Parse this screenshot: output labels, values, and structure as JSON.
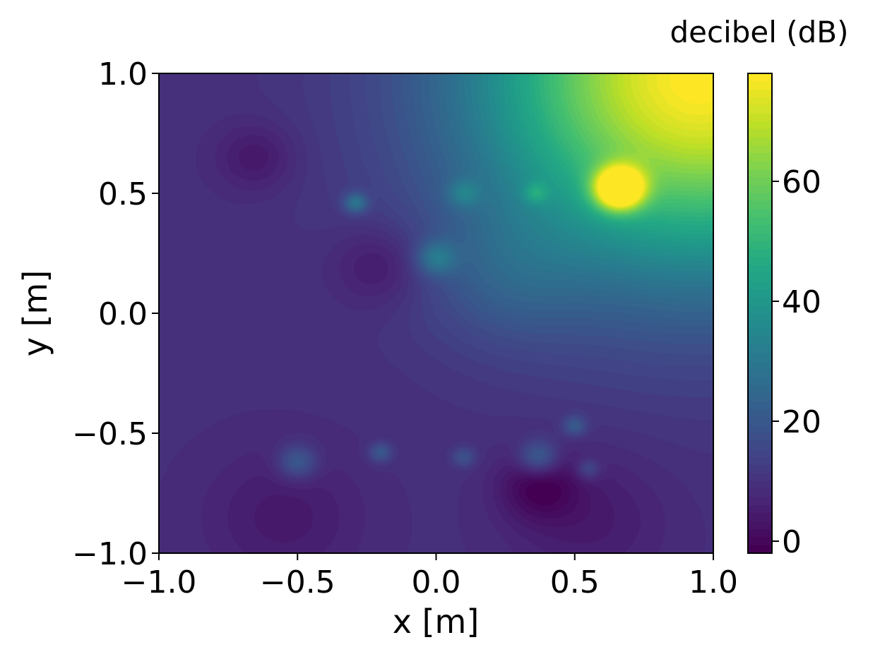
{
  "chart_data": {
    "type": "heatmap",
    "title": "",
    "xlabel": "x [m]",
    "ylabel": "y [m]",
    "xlim": [
      -1.0,
      1.0
    ],
    "ylim": [
      -1.0,
      1.0
    ],
    "x_ticks": [
      -1.0,
      -0.5,
      0.0,
      0.5,
      1.0
    ],
    "x_tick_labels": [
      "−1.0",
      "−0.5",
      "0.0",
      "0.5",
      "1.0"
    ],
    "y_ticks": [
      -1.0,
      -0.5,
      0.0,
      0.5,
      1.0
    ],
    "y_tick_labels": [
      "−1.0",
      "−0.5",
      "0.0",
      "0.5",
      "1.0"
    ],
    "grid": false,
    "colormap": "viridis",
    "colorbar": {
      "label": "decibel (dB)",
      "range": [
        -2,
        78
      ],
      "ticks": [
        0,
        20,
        40,
        60
      ],
      "tick_labels": [
        "0",
        "20",
        "40",
        "60"
      ]
    },
    "field": {
      "baseline_db": 9,
      "features": [
        {
          "x": 0.95,
          "y": 0.98,
          "db": 78,
          "spread": 0.55
        },
        {
          "x": 0.66,
          "y": 0.52,
          "db": 72,
          "spread": 0.06
        },
        {
          "x": 0.0,
          "y": 0.23,
          "db": 24,
          "spread": 0.05
        },
        {
          "x": -0.29,
          "y": 0.46,
          "db": 26,
          "spread": 0.03
        },
        {
          "x": -0.5,
          "y": -0.62,
          "db": 22,
          "spread": 0.05
        },
        {
          "x": 0.37,
          "y": -0.6,
          "db": 24,
          "spread": 0.05
        },
        {
          "x": -0.2,
          "y": -0.58,
          "db": 20,
          "spread": 0.03
        },
        {
          "x": 0.1,
          "y": -0.6,
          "db": 18,
          "spread": 0.03
        },
        {
          "x": 0.5,
          "y": -0.47,
          "db": 20,
          "spread": 0.03
        },
        {
          "x": 0.55,
          "y": -0.65,
          "db": 18,
          "spread": 0.03
        },
        {
          "x": 0.36,
          "y": 0.5,
          "db": 20,
          "spread": 0.03
        },
        {
          "x": 0.1,
          "y": 0.5,
          "db": 19,
          "spread": 0.04
        },
        {
          "x": 0.25,
          "y": 0.15,
          "db": 16,
          "spread": 0.2
        },
        {
          "x": -0.2,
          "y": 0.2,
          "db": 2,
          "spread": 0.12
        },
        {
          "x": -0.65,
          "y": 0.65,
          "db": 3,
          "spread": 0.1
        },
        {
          "x": 0.37,
          "y": -0.72,
          "db": 0,
          "spread": 0.1
        },
        {
          "x": -0.55,
          "y": -0.85,
          "db": 4,
          "spread": 0.2
        },
        {
          "x": 0.55,
          "y": -0.85,
          "db": 4,
          "spread": 0.2
        }
      ]
    }
  }
}
